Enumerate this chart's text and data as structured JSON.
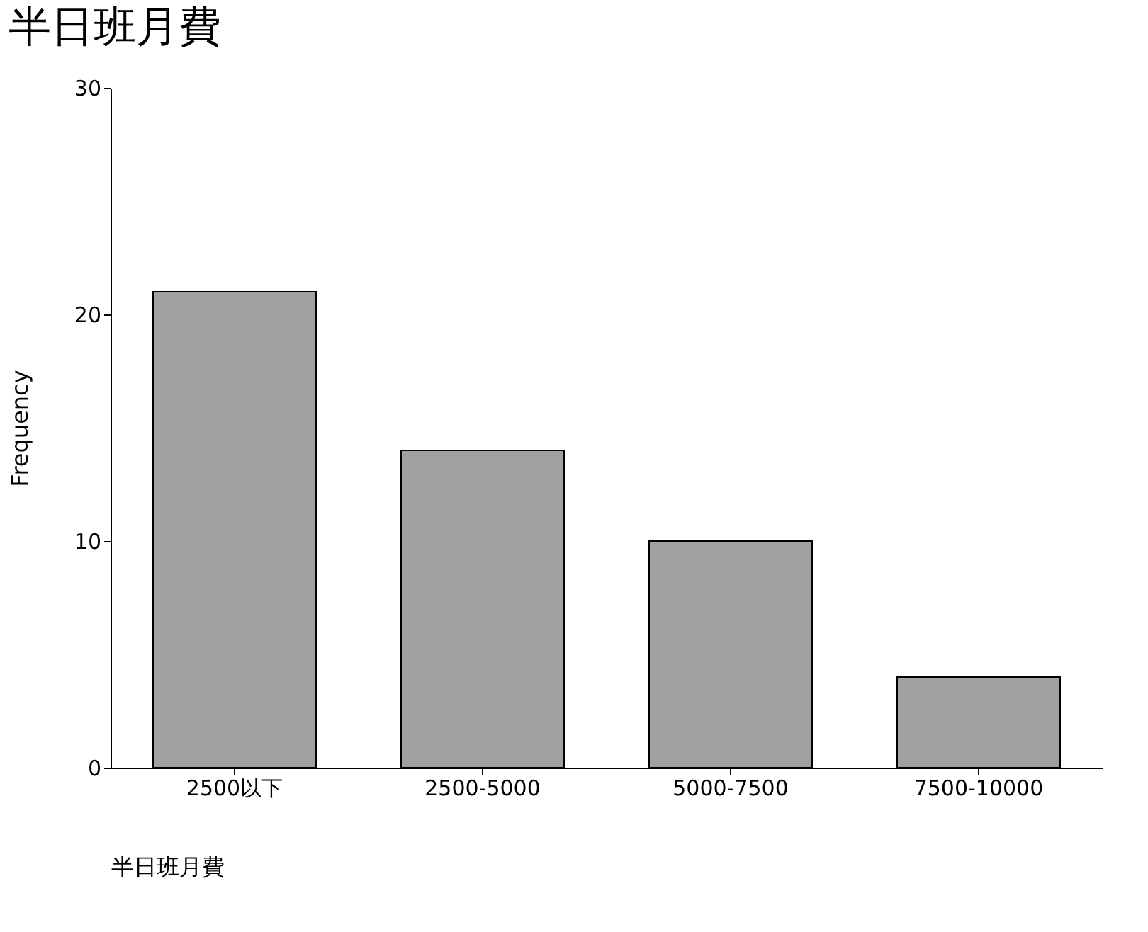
{
  "chart_data": {
    "type": "bar",
    "title": "半日班月費",
    "xlabel": "半日班月費",
    "ylabel": "Frequency",
    "categories": [
      "2500以下",
      "2500-5000",
      "5000-7500",
      "7500-10000"
    ],
    "values": [
      21,
      14,
      10,
      4
    ],
    "color": "#a0a0a0",
    "ylim": [
      0,
      30
    ],
    "yticks": [
      0,
      10,
      20,
      30
    ],
    "grid": false
  }
}
